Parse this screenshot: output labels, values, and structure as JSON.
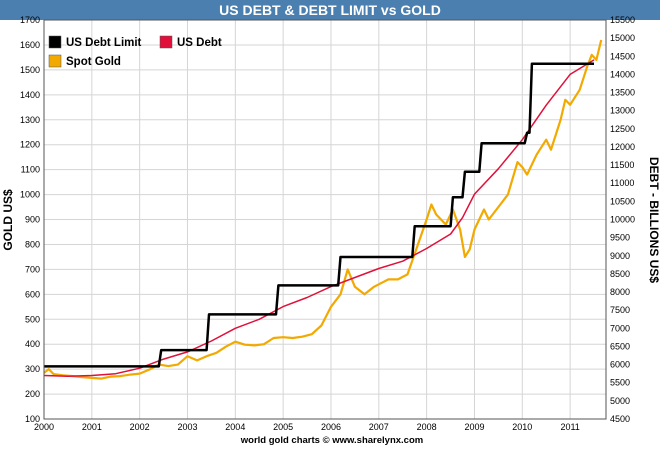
{
  "colors": {
    "title_bar": "#4a7fb0",
    "title_text": "#ffffff",
    "plot_bg": "#ffffff",
    "grid": "#d5d5d5",
    "debt_limit": "#000000",
    "us_debt": "#e0103a",
    "gold": "#f2a900",
    "frame_bg": "#ffffff",
    "text": "#000000"
  },
  "chart_data": {
    "type": "line",
    "title": "US DEBT & DEBT LIMIT vs GOLD",
    "source": "world gold charts © www.sharelynx.com",
    "y_left": {
      "label": "GOLD US$",
      "range": [
        100,
        1700
      ],
      "ticks": [
        100,
        200,
        300,
        400,
        500,
        600,
        700,
        800,
        900,
        1000,
        1100,
        1200,
        1300,
        1400,
        1500,
        1600,
        1700
      ]
    },
    "y_right": {
      "label": "DEBT - BILLIONS US$",
      "range": [
        4500,
        15500
      ],
      "ticks": [
        4500,
        5000,
        5500,
        6000,
        6500,
        7000,
        7500,
        8000,
        8500,
        9000,
        9500,
        10000,
        10500,
        11000,
        11500,
        12000,
        12500,
        13000,
        13500,
        14000,
        14500,
        15000,
        15500
      ]
    },
    "x": {
      "range": [
        2000,
        2011.75
      ],
      "ticks": [
        2000,
        2001,
        2002,
        2003,
        2004,
        2005,
        2006,
        2007,
        2008,
        2009,
        2010,
        2011
      ]
    },
    "grid": true,
    "legend_placement": "top-left",
    "series": [
      {
        "name": "US Debt Limit",
        "axis": "right",
        "step": true,
        "points": [
          [
            2000.0,
            5950
          ],
          [
            2002.4,
            5950
          ],
          [
            2002.45,
            6400
          ],
          [
            2003.4,
            6400
          ],
          [
            2003.45,
            7384
          ],
          [
            2004.85,
            7384
          ],
          [
            2004.9,
            8184
          ],
          [
            2006.15,
            8184
          ],
          [
            2006.2,
            8965
          ],
          [
            2007.7,
            8965
          ],
          [
            2007.75,
            9815
          ],
          [
            2008.5,
            9815
          ],
          [
            2008.55,
            10615
          ],
          [
            2008.75,
            10615
          ],
          [
            2008.8,
            11315
          ],
          [
            2009.1,
            11315
          ],
          [
            2009.15,
            12104
          ],
          [
            2010.05,
            12104
          ],
          [
            2010.1,
            12394
          ],
          [
            2010.15,
            12394
          ],
          [
            2010.2,
            14294
          ],
          [
            2011.5,
            14294
          ]
        ]
      },
      {
        "name": "US Debt",
        "axis": "right",
        "points": [
          [
            2000.0,
            5700
          ],
          [
            2000.5,
            5680
          ],
          [
            2001.0,
            5700
          ],
          [
            2001.5,
            5750
          ],
          [
            2002.0,
            5900
          ],
          [
            2002.5,
            6150
          ],
          [
            2003.0,
            6350
          ],
          [
            2003.5,
            6650
          ],
          [
            2004.0,
            7000
          ],
          [
            2004.5,
            7250
          ],
          [
            2005.0,
            7600
          ],
          [
            2005.5,
            7850
          ],
          [
            2006.0,
            8150
          ],
          [
            2006.5,
            8400
          ],
          [
            2007.0,
            8650
          ],
          [
            2007.5,
            8850
          ],
          [
            2008.0,
            9200
          ],
          [
            2008.5,
            9600
          ],
          [
            2008.75,
            10050
          ],
          [
            2009.0,
            10700
          ],
          [
            2009.5,
            11400
          ],
          [
            2010.0,
            12200
          ],
          [
            2010.5,
            13150
          ],
          [
            2011.0,
            14000
          ],
          [
            2011.5,
            14400
          ]
        ]
      },
      {
        "name": "Spot Gold",
        "axis": "left",
        "points": [
          [
            2000.0,
            285
          ],
          [
            2000.1,
            300
          ],
          [
            2000.2,
            280
          ],
          [
            2000.4,
            275
          ],
          [
            2000.6,
            272
          ],
          [
            2000.8,
            268
          ],
          [
            2001.0,
            265
          ],
          [
            2001.2,
            262
          ],
          [
            2001.4,
            270
          ],
          [
            2001.6,
            272
          ],
          [
            2001.8,
            278
          ],
          [
            2002.0,
            282
          ],
          [
            2002.2,
            298
          ],
          [
            2002.4,
            318
          ],
          [
            2002.6,
            312
          ],
          [
            2002.8,
            318
          ],
          [
            2003.0,
            352
          ],
          [
            2003.2,
            335
          ],
          [
            2003.4,
            352
          ],
          [
            2003.6,
            365
          ],
          [
            2003.8,
            390
          ],
          [
            2004.0,
            410
          ],
          [
            2004.2,
            398
          ],
          [
            2004.4,
            395
          ],
          [
            2004.6,
            400
          ],
          [
            2004.8,
            425
          ],
          [
            2005.0,
            428
          ],
          [
            2005.2,
            425
          ],
          [
            2005.4,
            430
          ],
          [
            2005.6,
            440
          ],
          [
            2005.8,
            475
          ],
          [
            2006.0,
            550
          ],
          [
            2006.2,
            600
          ],
          [
            2006.35,
            700
          ],
          [
            2006.5,
            630
          ],
          [
            2006.7,
            600
          ],
          [
            2006.9,
            630
          ],
          [
            2007.0,
            640
          ],
          [
            2007.2,
            660
          ],
          [
            2007.4,
            660
          ],
          [
            2007.6,
            680
          ],
          [
            2007.8,
            790
          ],
          [
            2008.0,
            900
          ],
          [
            2008.1,
            960
          ],
          [
            2008.2,
            920
          ],
          [
            2008.4,
            880
          ],
          [
            2008.55,
            940
          ],
          [
            2008.7,
            860
          ],
          [
            2008.8,
            750
          ],
          [
            2008.9,
            780
          ],
          [
            2009.0,
            860
          ],
          [
            2009.2,
            940
          ],
          [
            2009.3,
            900
          ],
          [
            2009.5,
            950
          ],
          [
            2009.7,
            1000
          ],
          [
            2009.9,
            1130
          ],
          [
            2010.0,
            1110
          ],
          [
            2010.1,
            1080
          ],
          [
            2010.3,
            1160
          ],
          [
            2010.5,
            1220
          ],
          [
            2010.6,
            1180
          ],
          [
            2010.8,
            1300
          ],
          [
            2010.9,
            1380
          ],
          [
            2011.0,
            1360
          ],
          [
            2011.2,
            1420
          ],
          [
            2011.35,
            1510
          ],
          [
            2011.45,
            1560
          ],
          [
            2011.55,
            1540
          ],
          [
            2011.65,
            1620
          ]
        ]
      }
    ]
  }
}
